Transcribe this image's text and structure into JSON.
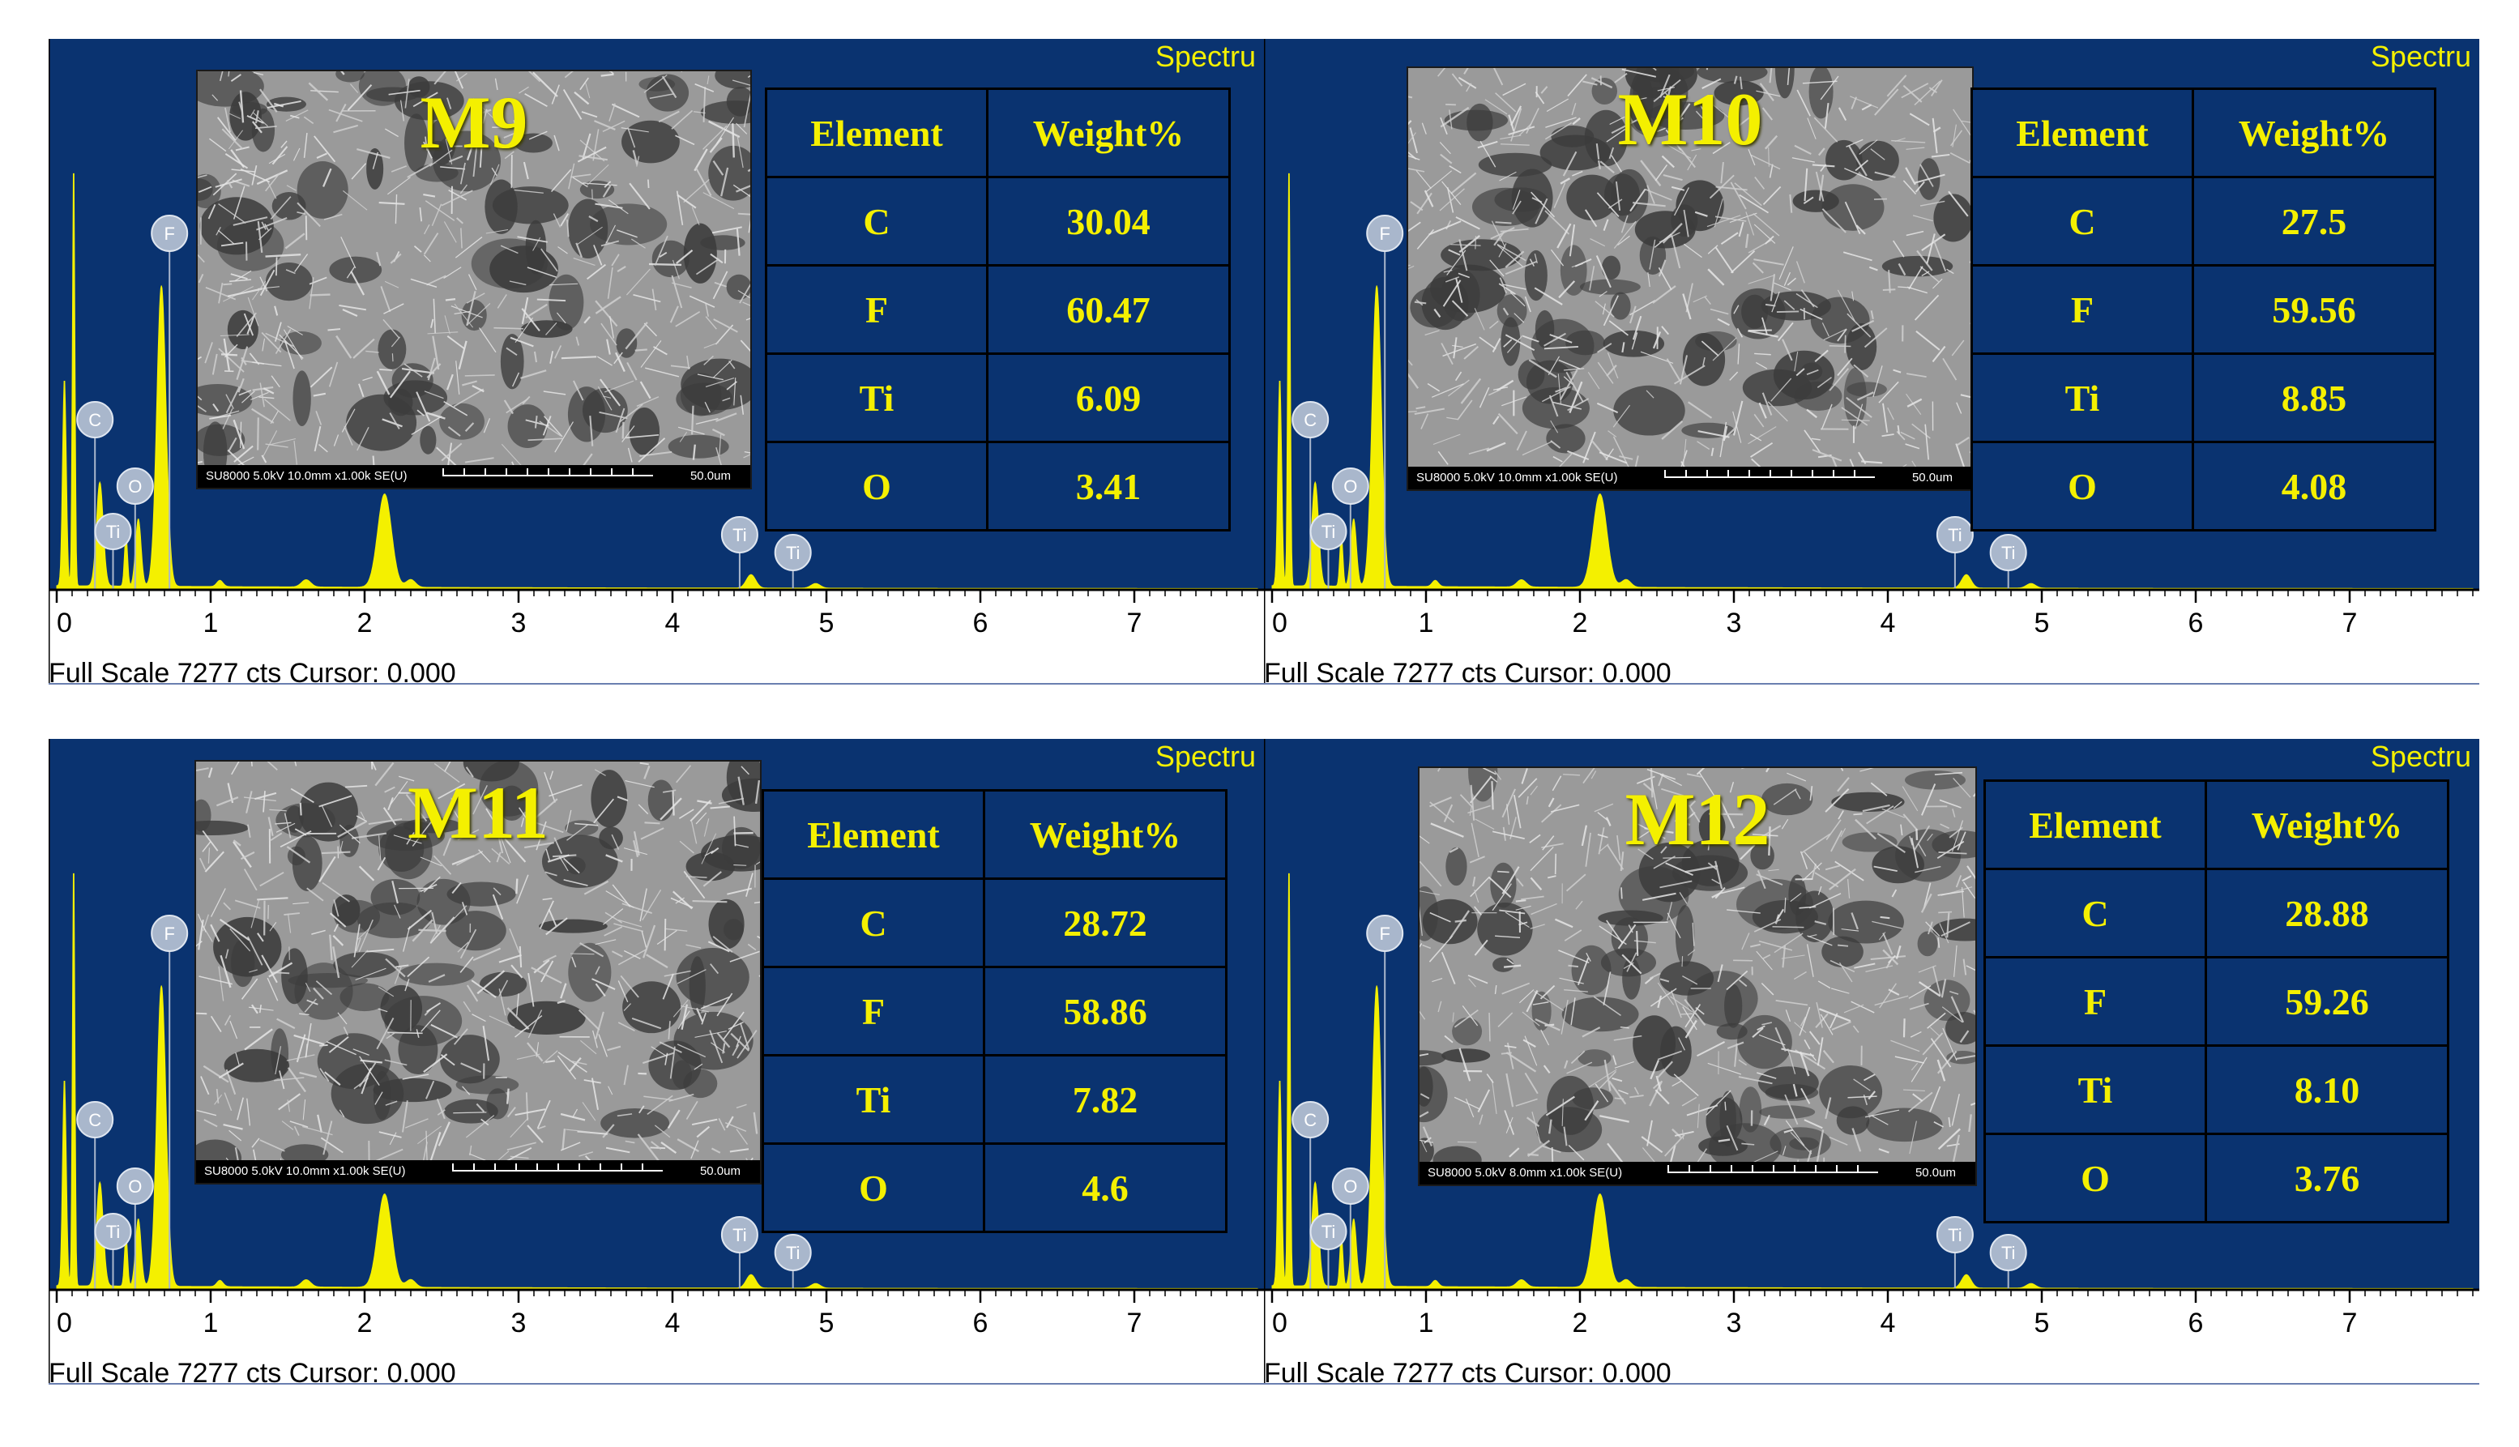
{
  "colors": {
    "background": "#0a3370",
    "spectrum": "#f4f000",
    "marker": "#a9b7cc",
    "text": "#f4f000",
    "axis": "#000000"
  },
  "axis_ticks": [
    "0",
    "1",
    "2",
    "3",
    "4",
    "5",
    "6",
    "7"
  ],
  "full_scale_text": "Full Scale 7277 cts Cursor: 0.000",
  "spectrum_label": "Spectru",
  "table_headers": {
    "element": "Element",
    "weight": "Weight%"
  },
  "chart_data": [
    {
      "type": "table",
      "sample": "M9",
      "sem_info": "SU8000 5.0kV 10.0mm x1.00k SE(U)",
      "sem_scale": "50.0um",
      "rows": [
        {
          "element": "C",
          "weight": "30.04"
        },
        {
          "element": "F",
          "weight": "60.47"
        },
        {
          "element": "Ti",
          "weight": "6.09"
        },
        {
          "element": "O",
          "weight": "3.41"
        }
      ],
      "peaks": [
        {
          "label": "C",
          "x": 0.28
        },
        {
          "label": "O",
          "x": 0.52
        },
        {
          "label": "Ti",
          "x": 0.45
        },
        {
          "label": "F",
          "x": 0.68
        },
        {
          "label": "Ti",
          "x": 4.51
        },
        {
          "label": "Ti",
          "x": 4.93
        }
      ]
    },
    {
      "type": "table",
      "sample": "M10",
      "sem_info": "SU8000 5.0kV 10.0mm x1.00k SE(U)",
      "sem_scale": "50.0um",
      "rows": [
        {
          "element": "C",
          "weight": "27.5"
        },
        {
          "element": "F",
          "weight": "59.56"
        },
        {
          "element": "Ti",
          "weight": "8.85"
        },
        {
          "element": "O",
          "weight": "4.08"
        }
      ],
      "peaks": [
        {
          "label": "C",
          "x": 0.28
        },
        {
          "label": "O",
          "x": 0.52
        },
        {
          "label": "Ti",
          "x": 0.45
        },
        {
          "label": "F",
          "x": 0.68
        },
        {
          "label": "Ti",
          "x": 4.51
        },
        {
          "label": "Ti",
          "x": 4.93
        }
      ]
    },
    {
      "type": "table",
      "sample": "M11",
      "sem_info": "SU8000 5.0kV 10.0mm x1.00k SE(U)",
      "sem_scale": "50.0um",
      "rows": [
        {
          "element": "C",
          "weight": "28.72"
        },
        {
          "element": "F",
          "weight": "58.86"
        },
        {
          "element": "Ti",
          "weight": "7.82"
        },
        {
          "element": "O",
          "weight": "4.6"
        }
      ],
      "peaks": [
        {
          "label": "C",
          "x": 0.28
        },
        {
          "label": "O",
          "x": 0.52
        },
        {
          "label": "Ti",
          "x": 0.45
        },
        {
          "label": "F",
          "x": 0.68
        },
        {
          "label": "Ti",
          "x": 4.51
        },
        {
          "label": "Ti",
          "x": 4.93
        }
      ]
    },
    {
      "type": "table",
      "sample": "M12",
      "sem_info": "SU8000 5.0kV 8.0mm x1.00k SE(U)",
      "sem_scale": "50.0um",
      "rows": [
        {
          "element": "C",
          "weight": "28.88"
        },
        {
          "element": "F",
          "weight": "59.26"
        },
        {
          "element": "Ti",
          "weight": "8.10"
        },
        {
          "element": "O",
          "weight": "3.76"
        }
      ],
      "peaks": [
        {
          "label": "C",
          "x": 0.28
        },
        {
          "label": "O",
          "x": 0.52
        },
        {
          "label": "Ti",
          "x": 0.45
        },
        {
          "label": "F",
          "x": 0.68
        },
        {
          "label": "Ti",
          "x": 4.51
        },
        {
          "label": "Ti",
          "x": 4.93
        }
      ]
    }
  ]
}
